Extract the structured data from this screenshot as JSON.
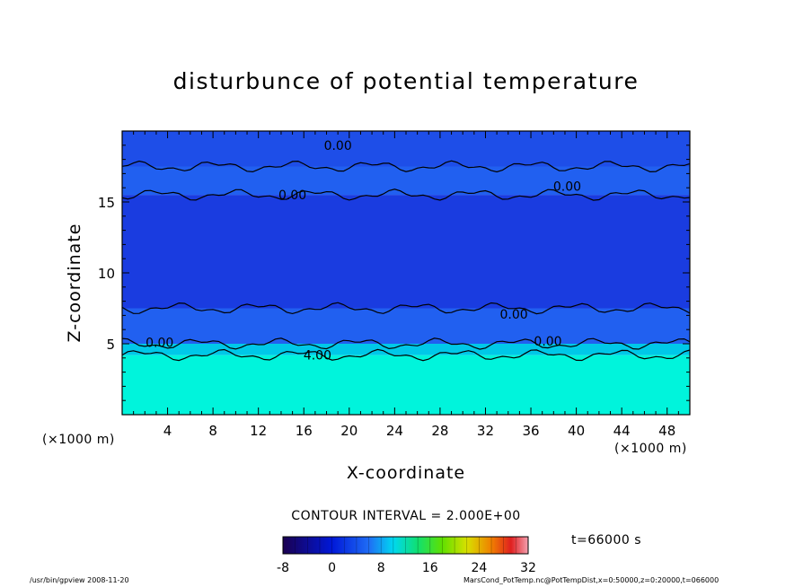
{
  "chart_data": {
    "type": "heatmap",
    "title": "disturbunce of potential temperature",
    "xlabel": "X-coordinate",
    "ylabel": "Z-coordinate",
    "x_unit": "(×1000 m)",
    "xlim": [
      0,
      50
    ],
    "ylim": [
      0,
      20
    ],
    "x_ticks": [
      4,
      8,
      12,
      16,
      20,
      24,
      28,
      32,
      36,
      40,
      44,
      48
    ],
    "y_ticks": [
      5,
      10,
      15
    ],
    "contour_labels": [
      {
        "text": "0.00",
        "x": 19,
        "z": 19
      },
      {
        "text": "0.00",
        "x": 15,
        "z": 15.5
      },
      {
        "text": "0.00",
        "x": 39.2,
        "z": 16.1
      },
      {
        "text": "0.00",
        "x": 34.5,
        "z": 7.1
      },
      {
        "text": "0.00",
        "x": 3.3,
        "z": 5.1
      },
      {
        "text": "0.00",
        "x": 37.5,
        "z": 5.2
      },
      {
        "text": "4.00",
        "x": 17.2,
        "z": 4.2
      }
    ],
    "bands": [
      {
        "z_from": 0,
        "z_to": 4.2,
        "value": 12
      },
      {
        "z_from": 4.2,
        "z_to": 5,
        "value": 4
      },
      {
        "z_from": 5,
        "z_to": 7.5,
        "value": -2
      },
      {
        "z_from": 7.5,
        "z_to": 15.5,
        "value": -4
      },
      {
        "z_from": 15.5,
        "z_to": 17.5,
        "value": -2
      },
      {
        "z_from": 17.5,
        "z_to": 20,
        "value": -3
      }
    ],
    "contour_interval": "CONTOUR INTERVAL = 2.000E+00",
    "colorbar": {
      "min": -8,
      "max": 32,
      "ticks": [
        "-8",
        "0",
        "8",
        "16",
        "24",
        "32"
      ]
    },
    "time": "t=66000 s"
  },
  "footer": {
    "left": "/usr/bin/gpview  2008-11-20",
    "right": "MarsCond_PotTemp.nc@PotTempDist,x=0:50000,z=0:20000,t=066000"
  },
  "colors": {
    "deep_blue": "#1a33e0",
    "mid_blue": "#2360f0",
    "light_blue": "#2f86f5",
    "cyan": "#00f0d8",
    "teal": "#00c9c9"
  }
}
